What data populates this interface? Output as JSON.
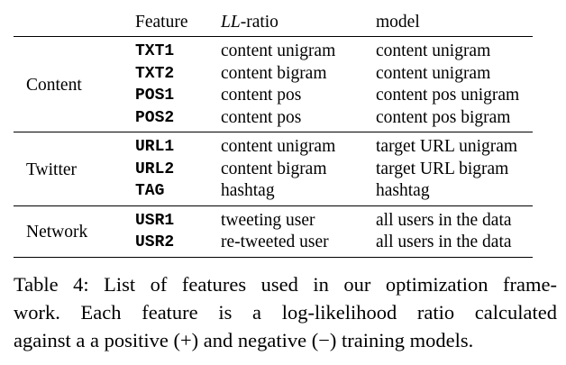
{
  "table": {
    "headers": {
      "feature": "Feature",
      "ll_italic": "LL",
      "ll_suffix": "-ratio",
      "model": "model"
    },
    "groups": [
      {
        "label": "Content",
        "rows": [
          {
            "feature": "TXT1",
            "ll_ratio": "content unigram",
            "model": "content unigram"
          },
          {
            "feature": "TXT2",
            "ll_ratio": "content bigram",
            "model": "content unigram"
          },
          {
            "feature": "POS1",
            "ll_ratio": "content pos",
            "model": "content pos unigram"
          },
          {
            "feature": "POS2",
            "ll_ratio": "content pos",
            "model": "content pos bigram"
          }
        ]
      },
      {
        "label": "Twitter",
        "rows": [
          {
            "feature": "URL1",
            "ll_ratio": "content unigram",
            "model": "target URL unigram"
          },
          {
            "feature": "URL2",
            "ll_ratio": "content bigram",
            "model": "target URL bigram"
          },
          {
            "feature": "TAG",
            "ll_ratio": "hashtag",
            "model": "hashtag"
          }
        ]
      },
      {
        "label": "Network",
        "rows": [
          {
            "feature": "USR1",
            "ll_ratio": "tweeting user",
            "model": "all users in the data"
          },
          {
            "feature": "USR2",
            "ll_ratio": "re-tweeted user",
            "model": "all users in the data"
          }
        ]
      }
    ]
  },
  "caption": {
    "lines": [
      "Table 4: List of features used in our optimization frame-",
      "work.  Each feature is a log-likelihood ratio calculated",
      "against a a positive (+) and negative (−) training models."
    ]
  }
}
